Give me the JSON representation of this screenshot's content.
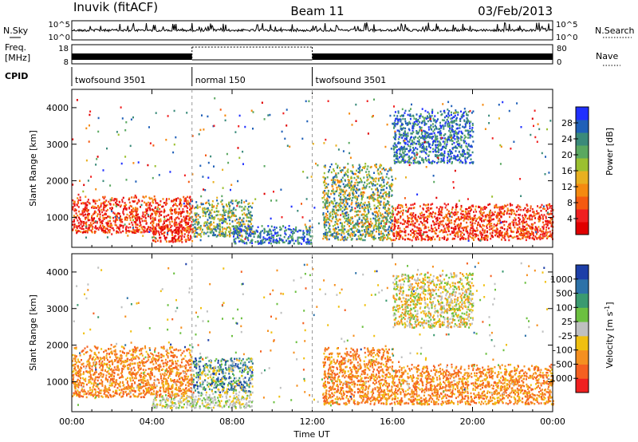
{
  "header": {
    "station": "Inuvik (fitACF)",
    "beam": "Beam 11",
    "date": "03/Feb/2013"
  },
  "summary_panels": {
    "nsky_label": "N.Sky",
    "nsky_ticks": [
      "10^5",
      "10^0"
    ],
    "nsearch_label": "N.Search",
    "nsearch_ticks": [
      "10^5",
      "10^0"
    ],
    "freq_label_1": "Freq.",
    "freq_label_2": "[MHz]",
    "freq_ticks": [
      "18",
      "8"
    ],
    "nave_label": "Nave",
    "nave_ticks": [
      "80",
      "0"
    ],
    "cpid_label": "CPID",
    "cpid_segments": [
      {
        "name": "twofsound 3501",
        "start_hour": 0,
        "end_hour": 6
      },
      {
        "name": "normal 150",
        "start_hour": 6,
        "end_hour": 12
      },
      {
        "name": "twofsound 3501",
        "start_hour": 12,
        "end_hour": 24
      }
    ]
  },
  "chart_data": [
    {
      "type": "heatmap",
      "parameter": "power",
      "ylabel": "Slant Range [km]",
      "xlabel": "",
      "xlim_hours": [
        0,
        24
      ],
      "ylim": [
        180,
        4500
      ],
      "yticks": [
        "1000",
        "2000",
        "3000",
        "4000"
      ],
      "colorbar_label": "Power [dB]",
      "colorbar_ticks": [
        "4",
        "8",
        "12",
        "16",
        "20",
        "24",
        "28"
      ],
      "colorbar_colors": [
        "#2030ff",
        "#2060b8",
        "#3a8a7a",
        "#5aa860",
        "#9bc030",
        "#e8b020",
        "#f58a10",
        "#f55a10",
        "#f02020",
        "#e00000"
      ],
      "scatter_regions": [
        {
          "start_hour": 0.0,
          "end_hour": 6.0,
          "range_min": 600,
          "range_max": 1600,
          "level": "strong"
        },
        {
          "start_hour": 4.0,
          "end_hour": 6.0,
          "range_min": 350,
          "range_max": 800,
          "level": "strong"
        },
        {
          "start_hour": 6.0,
          "end_hour": 9.0,
          "range_min": 500,
          "range_max": 1500,
          "level": "moderate"
        },
        {
          "start_hour": 8.0,
          "end_hour": 12.0,
          "range_min": 300,
          "range_max": 800,
          "level": "weak"
        },
        {
          "start_hour": 12.5,
          "end_hour": 16.0,
          "range_min": 400,
          "range_max": 2500,
          "level": "moderate"
        },
        {
          "start_hour": 16.0,
          "end_hour": 24.0,
          "range_min": 400,
          "range_max": 1400,
          "level": "strong"
        },
        {
          "start_hour": 16.0,
          "end_hour": 20.0,
          "range_min": 2500,
          "range_max": 4000,
          "level": "weak"
        }
      ]
    },
    {
      "type": "heatmap",
      "parameter": "velocity",
      "ylabel": "Slant Range [km]",
      "xlabel": "Time UT",
      "xlim_hours": [
        0,
        24
      ],
      "ylim": [
        180,
        4500
      ],
      "yticks": [
        "1000",
        "2000",
        "3000",
        "4000"
      ],
      "xticks": [
        "00:00",
        "04:00",
        "08:00",
        "12:00",
        "16:00",
        "20:00",
        "00:00"
      ],
      "colorbar_label": "Velocity [m s",
      "colorbar_label_sup": "-1",
      "colorbar_ticks": [
        "1000",
        "500",
        "100",
        "25",
        "-25",
        "-100",
        "-500",
        "-1000"
      ],
      "colorbar_colors": [
        "#1d3fa8",
        "#2d72a8",
        "#3a9a70",
        "#6cc040",
        "#bfc0c0",
        "#f0c010",
        "#f59020",
        "#f56020",
        "#f02020"
      ],
      "scatter_regions": [
        {
          "start_hour": 0.0,
          "end_hour": 6.0,
          "range_min": 600,
          "range_max": 2000,
          "level": "negative"
        },
        {
          "start_hour": 4.0,
          "end_hour": 9.0,
          "range_min": 300,
          "range_max": 700,
          "level": "near-zero"
        },
        {
          "start_hour": 6.0,
          "end_hour": 9.0,
          "range_min": 700,
          "range_max": 1700,
          "level": "mixed"
        },
        {
          "start_hour": 12.5,
          "end_hour": 16.0,
          "range_min": 400,
          "range_max": 2000,
          "level": "negative"
        },
        {
          "start_hour": 16.0,
          "end_hour": 24.0,
          "range_min": 400,
          "range_max": 1500,
          "level": "negative"
        },
        {
          "start_hour": 16.0,
          "end_hour": 20.0,
          "range_min": 2500,
          "range_max": 4000,
          "level": "weak-negative"
        }
      ]
    }
  ]
}
